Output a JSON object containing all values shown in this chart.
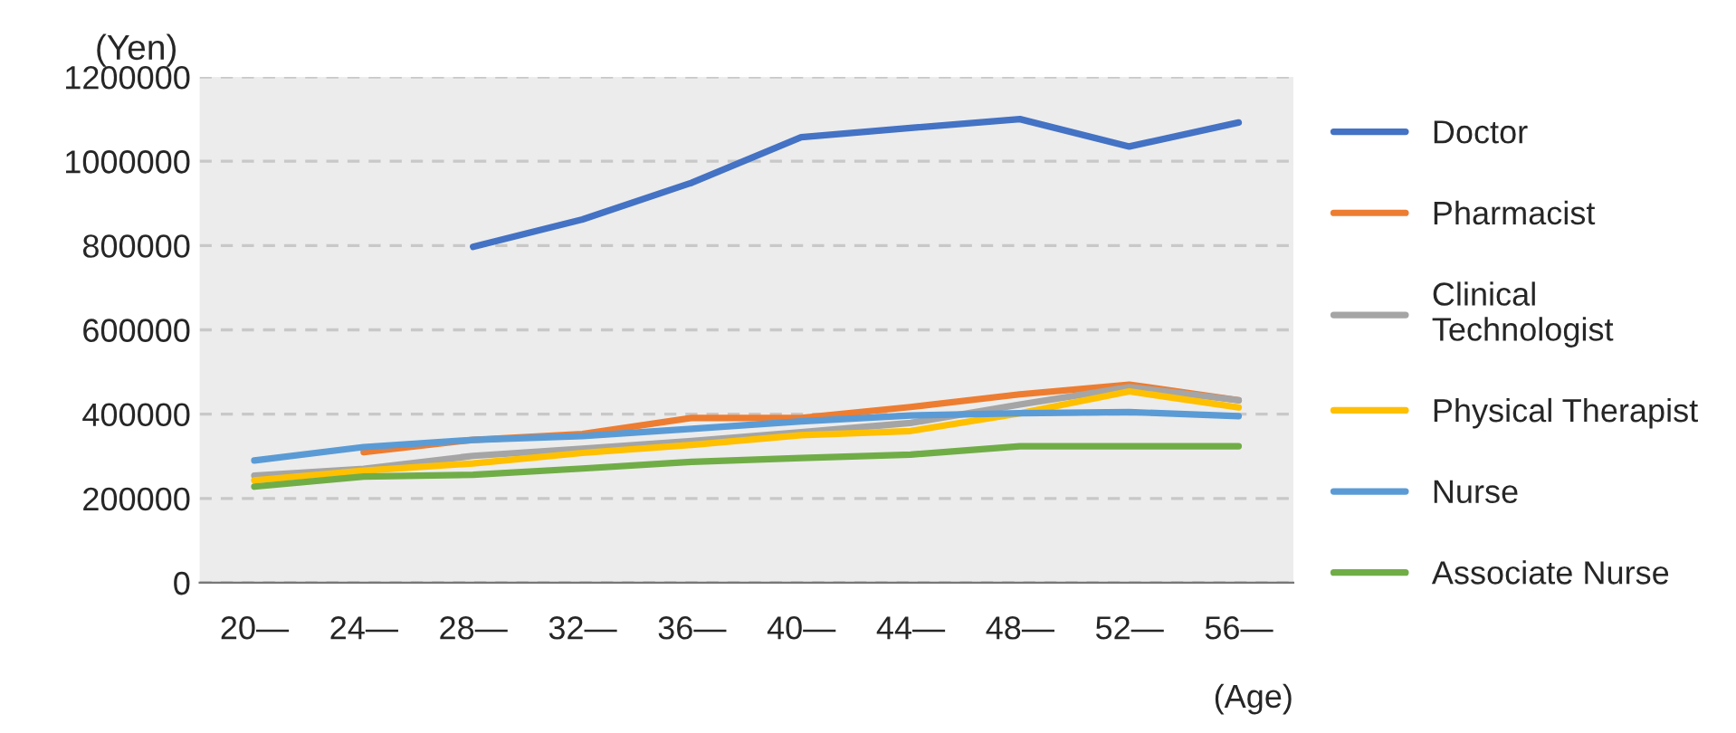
{
  "chart_data": {
    "type": "line",
    "ylabel": "(Yen)",
    "xlabel": "(Age)",
    "categories": [
      "20—",
      "24—",
      "28—",
      "32—",
      "36—",
      "40—",
      "44—",
      "48—",
      "52—",
      "56—"
    ],
    "series": [
      {
        "name": "Doctor",
        "color": "#4472c4",
        "values": [
          null,
          null,
          797000,
          862000,
          949000,
          1057000,
          1079000,
          1100000,
          1035000,
          1092000
        ]
      },
      {
        "name": "Pharmacist",
        "color": "#ed7d31",
        "values": [
          null,
          310000,
          339000,
          353000,
          391000,
          391000,
          417000,
          447000,
          470000,
          433000
        ]
      },
      {
        "name": "Clinical\nTechnologist",
        "color": "#a5a5a5",
        "values": [
          254000,
          270000,
          301000,
          318000,
          336000,
          357000,
          379000,
          423000,
          464000,
          433000
        ]
      },
      {
        "name": "Physical Therapist",
        "color": "#ffc000",
        "values": [
          243000,
          266000,
          283000,
          308000,
          327000,
          350000,
          360000,
          402000,
          454000,
          416000
        ]
      },
      {
        "name": "Nurse",
        "color": "#5b9bd5",
        "values": [
          290000,
          322000,
          339000,
          348000,
          365000,
          383000,
          397000,
          402000,
          405000,
          395000
        ]
      },
      {
        "name": "Associate Nurse",
        "color": "#70ad47",
        "values": [
          228000,
          252000,
          256000,
          271000,
          287000,
          296000,
          304000,
          324000,
          324000,
          324000
        ]
      }
    ],
    "ylim": [
      0,
      1200000
    ],
    "yticks": [
      0,
      200000,
      400000,
      600000,
      800000,
      1000000,
      1200000
    ],
    "grid": "y",
    "legend": "right",
    "line_style": "solid",
    "marker": "none"
  }
}
